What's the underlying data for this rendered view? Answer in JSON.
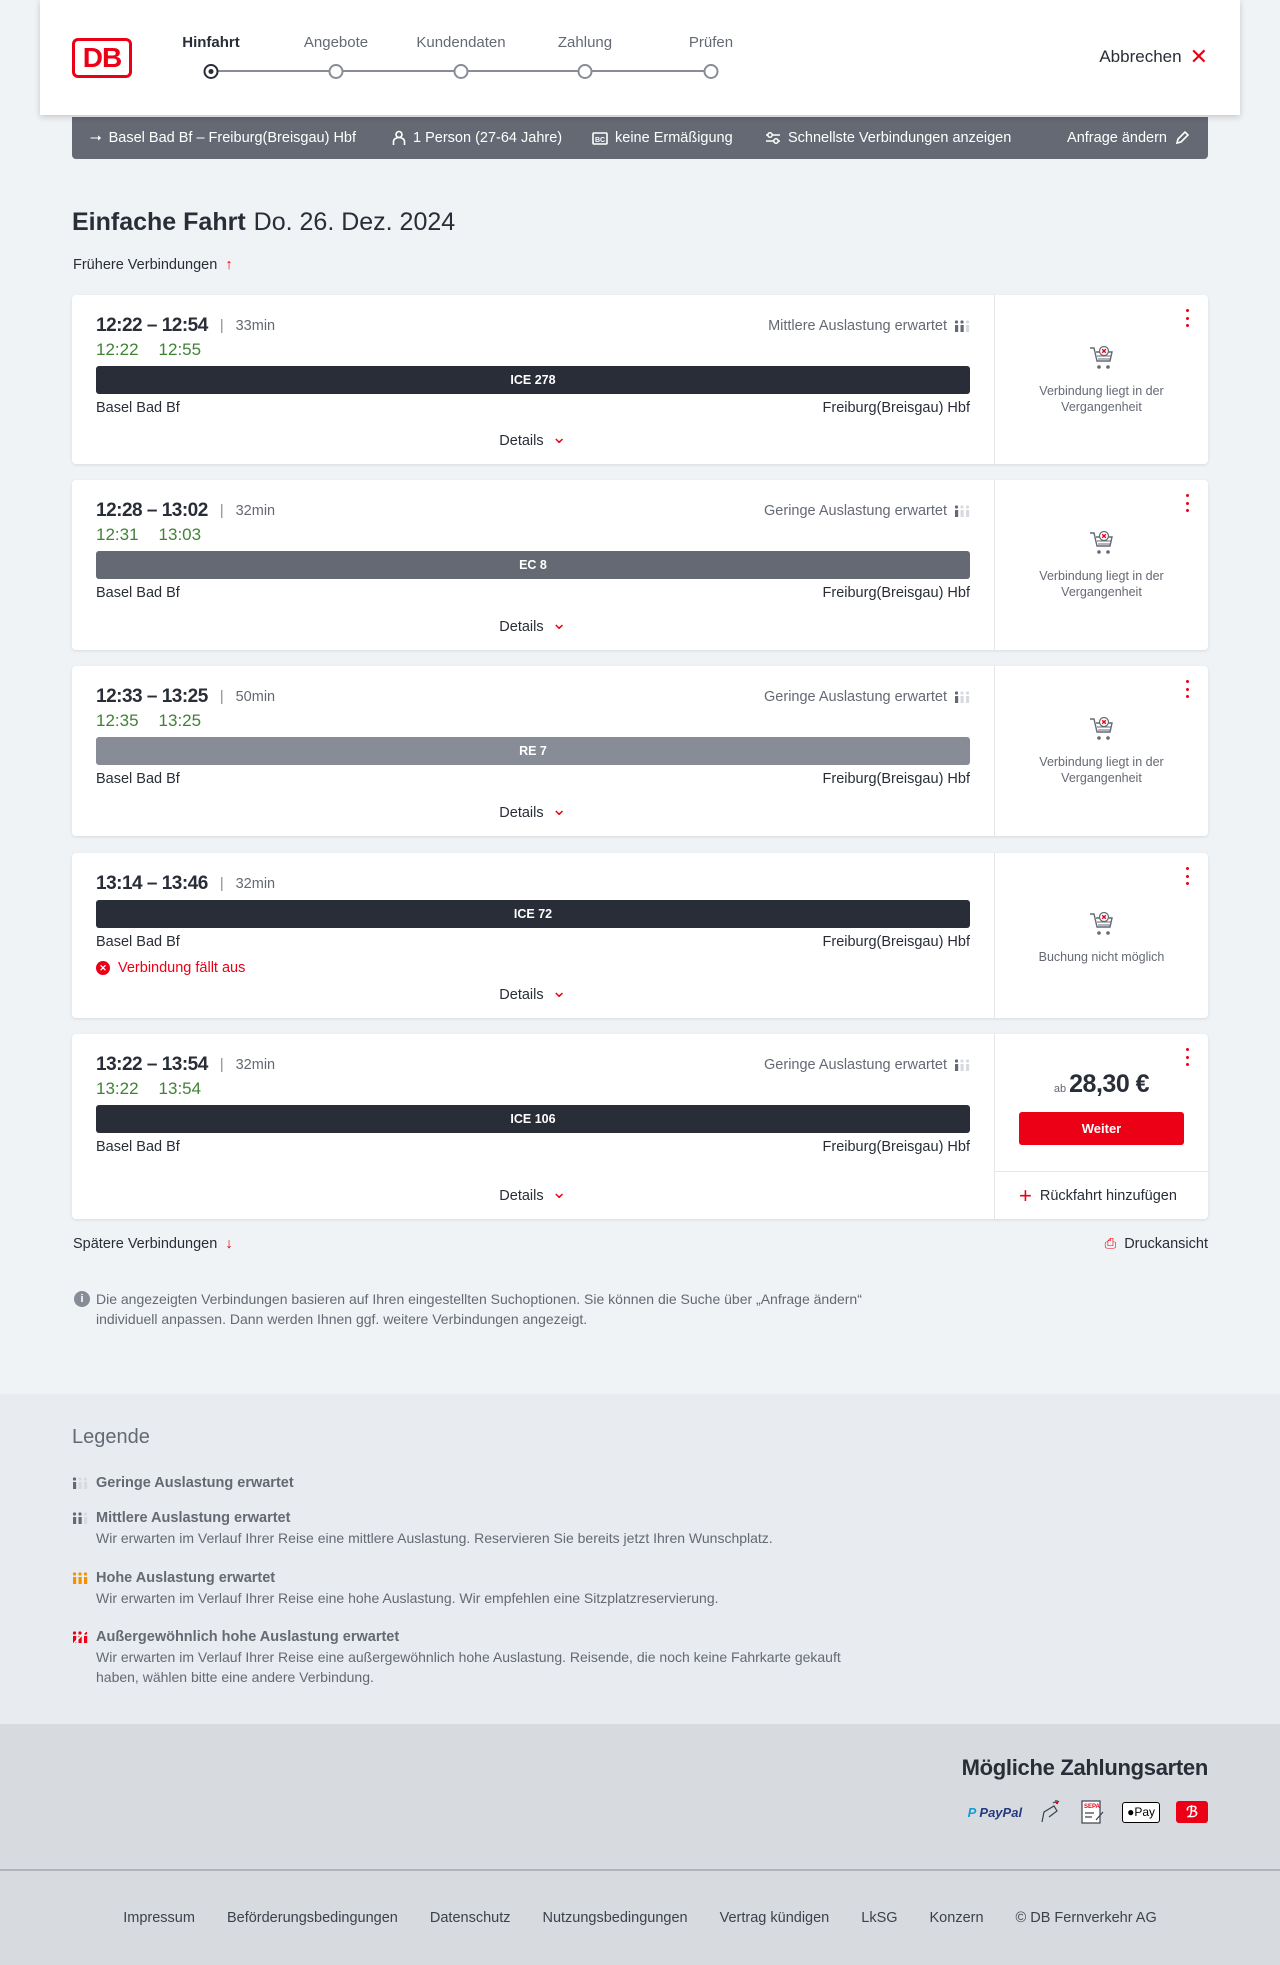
{
  "header": {
    "logo": "DB",
    "steps": [
      {
        "label": "Hinfahrt",
        "active": true
      },
      {
        "label": "Angebote"
      },
      {
        "label": "Kundendaten"
      },
      {
        "label": "Zahlung"
      },
      {
        "label": "Prüfen"
      }
    ],
    "cancel": "Abbrechen"
  },
  "search": {
    "route": "Basel Bad Bf – Freiburg(Breisgau) Hbf",
    "passengers": "1 Person (27-64 Jahre)",
    "discount": "keine Ermäßigung",
    "filter": "Schnellste Verbindungen anzeigen",
    "change": "Anfrage ändern"
  },
  "title": {
    "main": "Einfache Fahrt",
    "date": "Do. 26. Dez. 2024"
  },
  "earlier": "Frühere Verbindungen",
  "later": "Spätere Verbindungen",
  "print": "Druckansicht",
  "colors": {
    "accent": "#ec0016",
    "realtime": "#408335",
    "ice": "#282d37",
    "ec": "#646973",
    "re": "#878c96"
  },
  "connections": [
    {
      "times": "12:22 – 12:54",
      "duration": "33min",
      "load": "Mittlere Auslastung erwartet",
      "load_level": 2,
      "realtime": [
        "12:22",
        "12:55"
      ],
      "train": "ICE 278",
      "train_color": "#282d37",
      "from": "Basel Bad Bf",
      "to": "Freiburg(Breisgau) Hbf",
      "details": "Details",
      "status": "Verbindung liegt in der Vergangenheit"
    },
    {
      "times": "12:28 – 13:02",
      "duration": "32min",
      "load": "Geringe Auslastung erwartet",
      "load_level": 1,
      "realtime": [
        "12:31",
        "13:03"
      ],
      "train": "EC 8",
      "train_color": "#646973",
      "from": "Basel Bad Bf",
      "to": "Freiburg(Breisgau) Hbf",
      "details": "Details",
      "status": "Verbindung liegt in der Vergangenheit"
    },
    {
      "times": "12:33 – 13:25",
      "duration": "50min",
      "load": "Geringe Auslastung erwartet",
      "load_level": 1,
      "realtime": [
        "12:35",
        "13:25"
      ],
      "train": "RE 7",
      "train_color": "#878c96",
      "from": "Basel Bad Bf",
      "to": "Freiburg(Breisgau) Hbf",
      "details": "Details",
      "status": "Verbindung liegt in der Vergangenheit"
    },
    {
      "times": "13:14 – 13:46",
      "duration": "32min",
      "train": "ICE 72",
      "train_color": "#282d37",
      "from": "Basel Bad Bf",
      "to": "Freiburg(Breisgau) Hbf",
      "cancelled": "Verbindung fällt aus",
      "details": "Details",
      "status": "Buchung nicht möglich"
    },
    {
      "times": "13:22 – 13:54",
      "duration": "32min",
      "load": "Geringe Auslastung erwartet",
      "load_level": 1,
      "realtime": [
        "13:22",
        "13:54"
      ],
      "train": "ICE 106",
      "train_color": "#282d37",
      "from": "Basel Bad Bf",
      "to": "Freiburg(Breisgau) Hbf",
      "details": "Details",
      "price_prefix": "ab",
      "price": "28,30 €",
      "button": "Weiter",
      "return": "Rückfahrt hinzufügen"
    }
  ],
  "info": "Die angezeigten Verbindungen basieren auf Ihren eingestellten Suchoptionen. Sie können die Suche über „Anfrage ändern“ individuell anpassen. Dann werden Ihnen ggf. weitere Verbindungen angezeigt.",
  "legend": {
    "title": "Legende",
    "items": [
      {
        "title": "Geringe Auslastung erwartet",
        "text": "",
        "icon": "load-low",
        "color": "#646973"
      },
      {
        "title": "Mittlere Auslastung erwartet",
        "text": "Wir erwarten im Verlauf Ihrer Reise eine mittlere Auslastung. Reservieren Sie bereits jetzt Ihren Wunschplatz.",
        "icon": "load-medium",
        "color": "#646973"
      },
      {
        "title": "Hohe Auslastung erwartet",
        "text": "Wir erwarten im Verlauf Ihrer Reise eine hohe Auslastung. Wir empfehlen eine Sitzplatzreservierung.",
        "icon": "load-high",
        "color": "#f39200"
      },
      {
        "title": "Außergewöhnlich hohe Auslastung erwartet",
        "text": "Wir erwarten im Verlauf Ihrer Reise eine außergewöhnlich hohe Auslastung. Reisende, die noch keine Fahrkarte gekauft haben, wählen bitte eine andere Verbindung.",
        "icon": "load-exceptional",
        "color": "#ec0016"
      }
    ]
  },
  "payment": {
    "title": "Mögliche Zahlungsarten",
    "methods": [
      "PayPal",
      "Kreditkarte",
      "SEPA",
      "Pay",
      "DB Bonus"
    ]
  },
  "footer": [
    "Impressum",
    "Beförderungsbedingungen",
    "Datenschutz",
    "Nutzungsbedingungen",
    "Vertrag kündigen",
    "LkSG",
    "Konzern",
    "© DB Fernverkehr AG"
  ]
}
